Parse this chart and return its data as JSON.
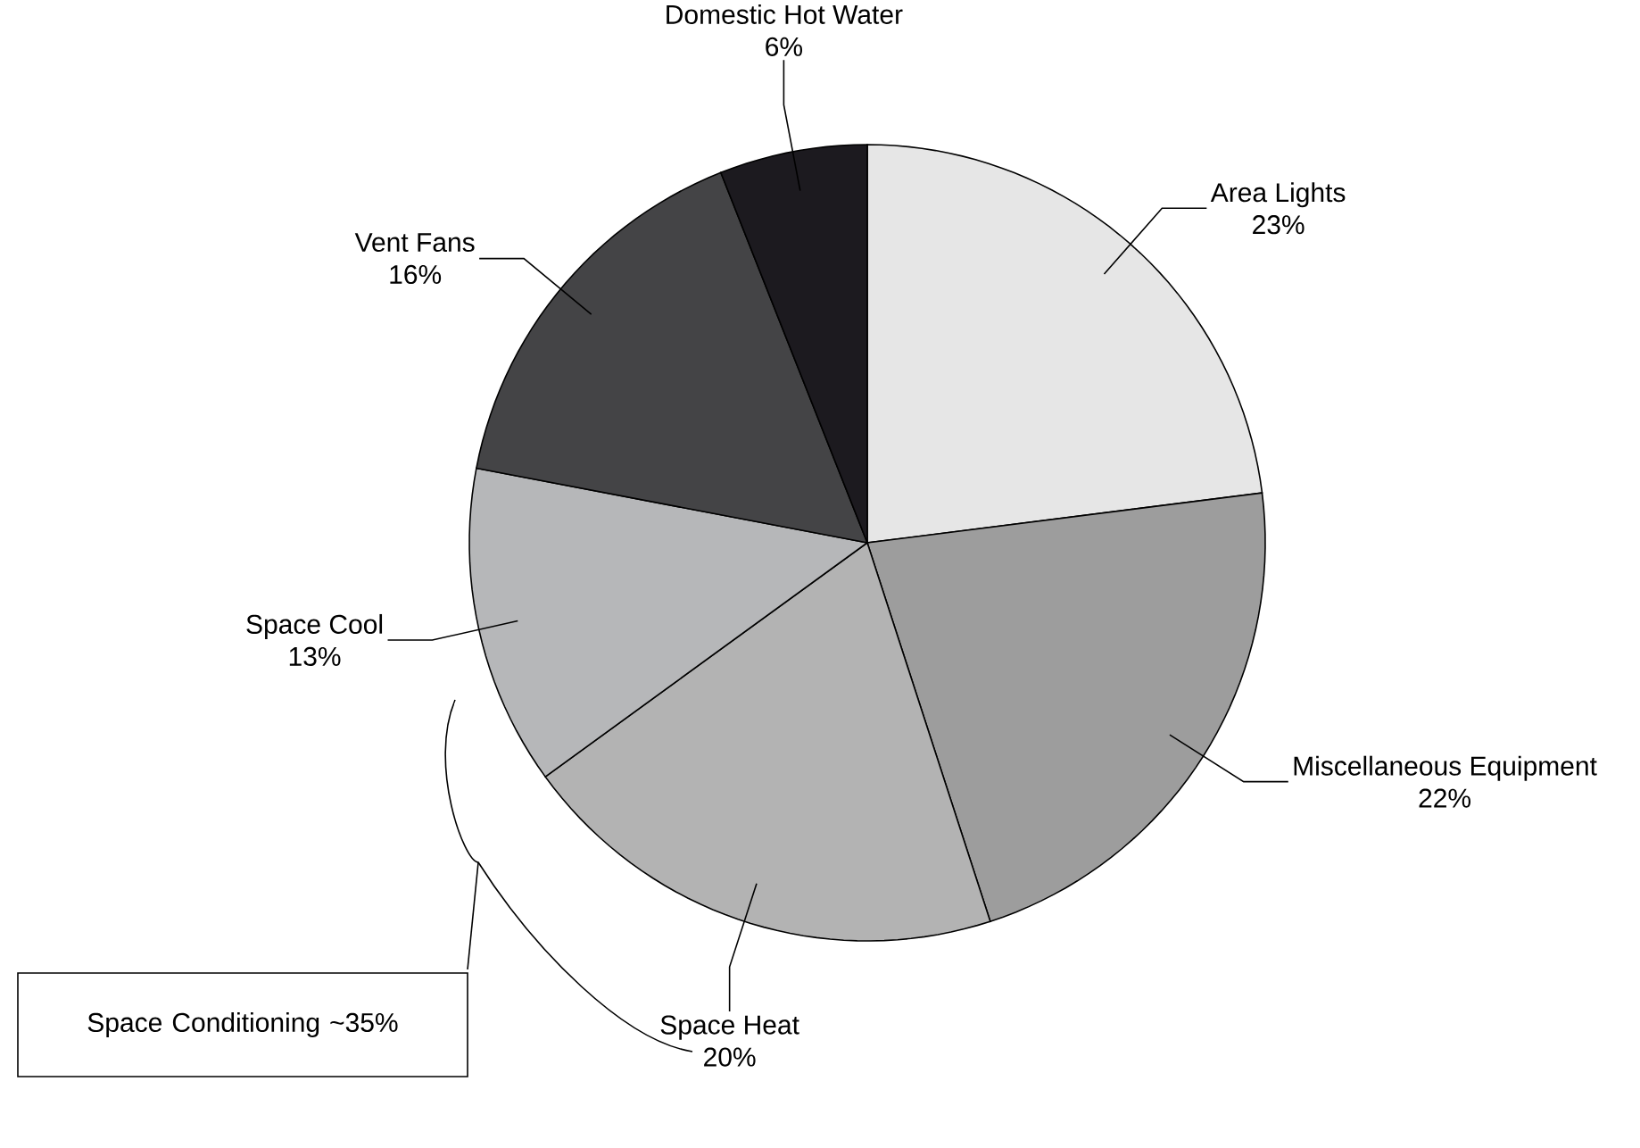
{
  "chart_data": {
    "type": "pie",
    "categories": [
      "Area Lights",
      "Miscellaneous Equipment",
      "Space Heat",
      "Space Cool",
      "Vent Fans",
      "Domestic Hot Water"
    ],
    "values": [
      23,
      22,
      20,
      13,
      16,
      6
    ],
    "colors": [
      "#e6e6e6",
      "#9d9d9d",
      "#b3b3b3",
      "#b6b7b9",
      "#444446",
      "#1c1a1f"
    ],
    "value_labels": [
      "23%",
      "22%",
      "20%",
      "13%",
      "16%",
      "6%"
    ],
    "annotations": [
      "Space Conditioning ~35%"
    ]
  }
}
